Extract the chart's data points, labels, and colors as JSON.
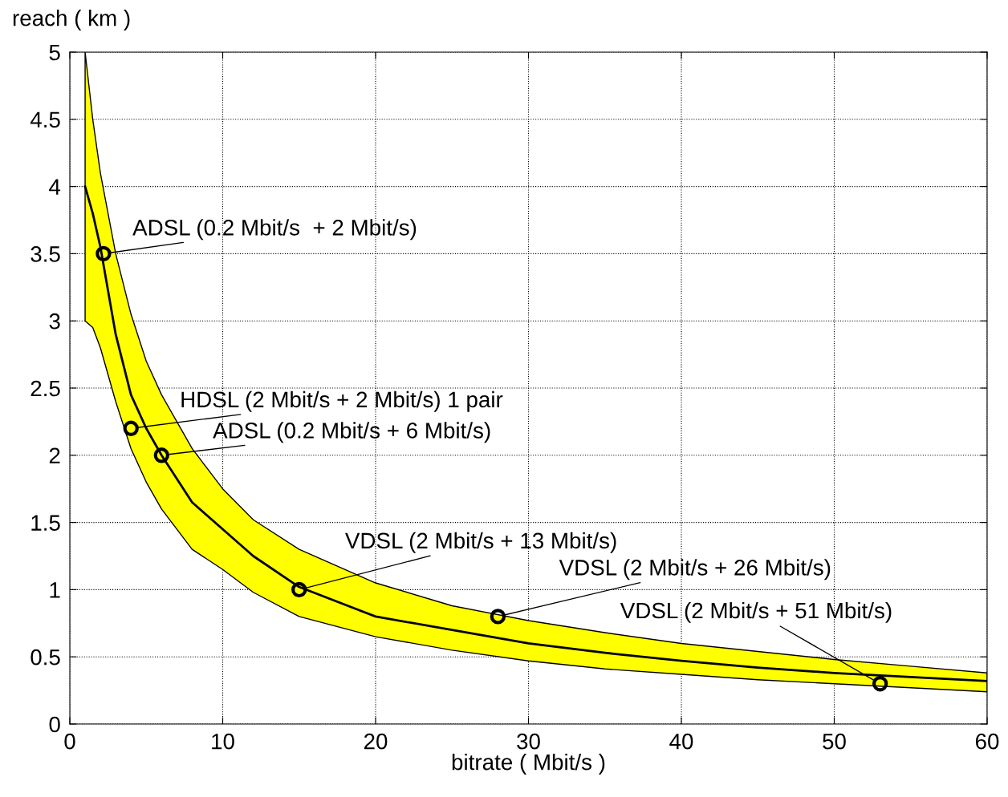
{
  "chart_data": {
    "type": "line",
    "xlabel": "bitrate ( Mbit/s )",
    "ylabel": "reach ( km )",
    "xlim": [
      0,
      60
    ],
    "ylim": [
      0,
      5
    ],
    "xticks": [
      0,
      10,
      20,
      30,
      40,
      50,
      60
    ],
    "yticks": [
      0,
      0.5,
      1,
      1.5,
      2,
      2.5,
      3,
      3.5,
      4,
      4.5,
      5
    ],
    "grid": true,
    "series": [
      {
        "color": "#000000",
        "x": [
          1,
          1.5,
          2,
          3,
          4,
          5,
          6,
          8,
          10,
          12,
          15,
          20,
          25,
          30,
          35,
          40,
          45,
          50,
          55,
          60
        ],
        "values": [
          4.0,
          3.8,
          3.55,
          2.9,
          2.45,
          2.2,
          2.0,
          1.65,
          1.45,
          1.25,
          1.02,
          0.8,
          0.7,
          0.6,
          0.53,
          0.47,
          0.42,
          0.38,
          0.35,
          0.32
        ],
        "lower": [
          3.0,
          2.95,
          2.8,
          2.4,
          2.05,
          1.8,
          1.6,
          1.3,
          1.15,
          0.98,
          0.8,
          0.65,
          0.55,
          0.47,
          0.41,
          0.37,
          0.33,
          0.3,
          0.27,
          0.24
        ],
        "upper": [
          5.0,
          4.5,
          4.1,
          3.5,
          3.05,
          2.7,
          2.45,
          2.05,
          1.75,
          1.52,
          1.3,
          1.05,
          0.88,
          0.77,
          0.68,
          0.6,
          0.54,
          0.48,
          0.43,
          0.38
        ]
      },
      {
        "type": "scatter",
        "color": "#000000",
        "marker": "circle",
        "x": [
          2.2,
          4,
          6,
          15,
          28,
          53
        ],
        "values": [
          3.5,
          2.2,
          2,
          1,
          0.8,
          0.3
        ]
      }
    ],
    "annotations": [
      {
        "text": "ADSL (0.2 Mbit/s  + 2 Mbit/s)",
        "x": 2.2,
        "y": 3.5
      },
      {
        "text": "HDSL (2 Mbit/s + 2 Mbit/s) 1 pair",
        "x": 4,
        "y": 2.2
      },
      {
        "text": "ADSL (0.2 Mbit/s + 6 Mbit/s)",
        "x": 6,
        "y": 2
      },
      {
        "text": "VDSL (2 Mbit/s + 13 Mbit/s)",
        "x": 15,
        "y": 1
      },
      {
        "text": "VDSL (2 Mbit/s + 26 Mbit/s)",
        "x": 28,
        "y": 0.8
      },
      {
        "text": "VDSL (2 Mbit/s + 51 Mbit/s)",
        "x": 53,
        "y": 0.3
      }
    ]
  }
}
